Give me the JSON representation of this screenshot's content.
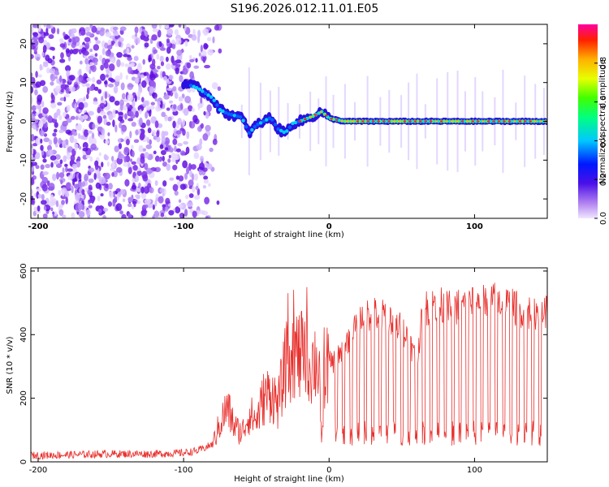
{
  "figure": {
    "title": "S196.2026.012.11.01.E05"
  },
  "chart_data": [
    {
      "type": "heatmap",
      "title": "S196.2026.012.11.01.E05",
      "xlabel": "Height of straight line (km)",
      "ylabel": "Frequency (Hz)",
      "xlim": [
        -205,
        150
      ],
      "ylim": [
        -25,
        25
      ],
      "xticks": [
        "-200",
        "-100",
        "0",
        "100"
      ],
      "xtick_values": [
        -200,
        -100,
        0,
        100
      ],
      "yticks": [
        "-20",
        "-10",
        "0",
        "10",
        "20"
      ],
      "ytick_values": [
        -20,
        -10,
        0,
        10,
        20
      ],
      "colorbar": {
        "label": "Normalized spectral amplitude",
        "ticks": [
          "0.0",
          "0.2",
          "0.4",
          "0.6",
          "0.8"
        ],
        "tick_values": [
          0.0,
          0.2,
          0.4,
          0.6,
          0.8
        ],
        "range": [
          0,
          1
        ]
      },
      "ridge_points": [
        {
          "x": -100,
          "f": 10
        },
        {
          "x": -90,
          "f": 8.5
        },
        {
          "x": -80,
          "f": 6
        },
        {
          "x": -75,
          "f": 3
        },
        {
          "x": -70,
          "f": 2
        },
        {
          "x": -60,
          "f": 1
        },
        {
          "x": -55,
          "f": -3
        },
        {
          "x": -50,
          "f": -1
        },
        {
          "x": -45,
          "f": 0
        },
        {
          "x": -40,
          "f": 1
        },
        {
          "x": -35,
          "f": -2
        },
        {
          "x": -30,
          "f": -3
        },
        {
          "x": -25,
          "f": -0.5
        },
        {
          "x": -20,
          "f": 0
        },
        {
          "x": -10,
          "f": 1.5
        },
        {
          "x": -5,
          "f": 2.5
        },
        {
          "x": 0,
          "f": 0.8
        },
        {
          "x": 10,
          "f": 0
        },
        {
          "x": 50,
          "f": 0
        },
        {
          "x": 100,
          "f": 0
        },
        {
          "x": 150,
          "f": 0
        }
      ],
      "noise_region_x": [
        -205,
        -75
      ]
    },
    {
      "type": "line",
      "xlabel": "Height of straight line (km)",
      "ylabel": "SNR (10 * v/v)",
      "xlim": [
        -205,
        150
      ],
      "ylim": [
        0,
        610
      ],
      "xticks": [
        "-200",
        "-100",
        "0",
        "100"
      ],
      "xtick_values": [
        -200,
        -100,
        0,
        100
      ],
      "yticks": [
        "0",
        "200",
        "400",
        "600"
      ],
      "ytick_values": [
        0,
        200,
        400,
        600
      ],
      "color": "#e8302d",
      "series": [
        {
          "name": "SNR",
          "x": [
            -205,
            -180,
            -150,
            -120,
            -100,
            -90,
            -80,
            -75,
            -70,
            -65,
            -60,
            -55,
            -50,
            -45,
            -40,
            -35,
            -30,
            -25,
            -20,
            -15,
            -10,
            -5,
            0,
            5,
            10,
            15,
            20,
            25,
            30,
            35,
            40,
            45,
            50,
            55,
            60,
            65,
            70,
            75,
            80,
            90,
            100,
            110,
            120,
            130,
            140,
            150
          ],
          "y": [
            20,
            22,
            25,
            25,
            28,
            35,
            55,
            120,
            170,
            110,
            90,
            150,
            130,
            200,
            220,
            180,
            300,
            350,
            330,
            300,
            320,
            290,
            310,
            320,
            360,
            400,
            440,
            460,
            470,
            450,
            470,
            430,
            420,
            380,
            320,
            480,
            490,
            500,
            480,
            490,
            500,
            510,
            500,
            480,
            470,
            475
          ]
        }
      ],
      "dropouts_x": [
        -5,
        5,
        10,
        15,
        20,
        25,
        30,
        35,
        40,
        45,
        50,
        55,
        60,
        65,
        70,
        75,
        80,
        85,
        90,
        95,
        100,
        105,
        110,
        115,
        120,
        125,
        130,
        135,
        140,
        145
      ]
    }
  ]
}
